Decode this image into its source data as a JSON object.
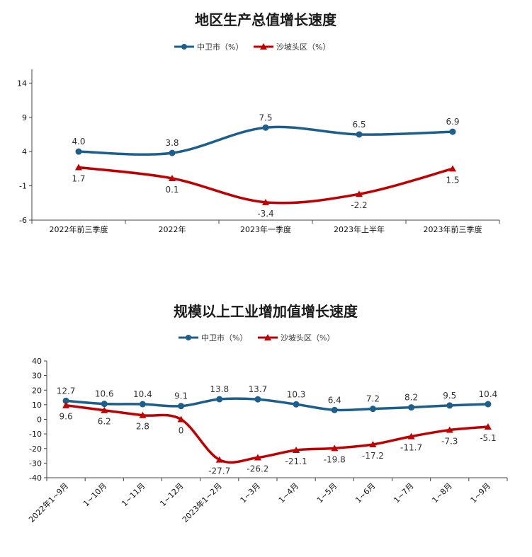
{
  "colors": {
    "blue": "#1c5f8c",
    "red": "#c00000"
  },
  "chart_data": [
    {
      "type": "line",
      "title": "地区生产总值增长速度",
      "categories": [
        "2022年前三季度",
        "2022年",
        "2023年一季度",
        "2023年上半年",
        "2023年前三季度"
      ],
      "series": [
        {
          "name": "中卫市（%）",
          "values": [
            4.0,
            3.8,
            7.5,
            6.5,
            6.9
          ],
          "labels": [
            "4.0",
            "3.8",
            "7.5",
            "6.5",
            "6.9"
          ],
          "marker": "circle"
        },
        {
          "name": "沙坡头区（%）",
          "values": [
            1.7,
            0.1,
            -3.4,
            -2.2,
            1.5
          ],
          "labels": [
            "1.7",
            "0.1",
            "-3.4",
            "-2.2",
            "1.5"
          ],
          "marker": "triangle"
        }
      ],
      "ylim": [
        -6,
        16
      ],
      "yticks": [
        "14",
        "9",
        "4",
        "-1",
        "-6"
      ],
      "ytick_values": [
        14,
        9,
        4,
        -1,
        -6
      ],
      "legend": "top",
      "grid": false
    },
    {
      "type": "line",
      "title": "规模以上工业增加值增长速度",
      "categories": [
        "2022年1~9月",
        "1~10月",
        "1~11月",
        "1~12月",
        "2023年1~2月",
        "1~3月",
        "1~4月",
        "1~5月",
        "1~6月",
        "1~7月",
        "1~8月",
        "1~9月"
      ],
      "series": [
        {
          "name": "中卫市（%）",
          "values": [
            12.7,
            10.6,
            10.4,
            9.1,
            13.8,
            13.7,
            10.3,
            6.4,
            7.2,
            8.2,
            9.5,
            10.4
          ],
          "labels": [
            "12.7",
            "10.6",
            "10.4",
            "9.1",
            "13.8",
            "13.7",
            "10.3",
            "6.4",
            "7.2",
            "8.2",
            "9.5",
            "10.4"
          ],
          "marker": "circle"
        },
        {
          "name": "沙坡头区（%）",
          "values": [
            9.6,
            6.2,
            2.8,
            0,
            -27.7,
            -26.2,
            -21.1,
            -19.8,
            -17.2,
            -11.7,
            -7.3,
            -5.1
          ],
          "labels": [
            "9.6",
            "6.2",
            "2.8",
            "0",
            "-27.7",
            "-26.2",
            "-21.1",
            "-19.8",
            "-17.2",
            "-11.7",
            "-7.3",
            "-5.1"
          ],
          "marker": "triangle"
        }
      ],
      "ylim": [
        -40,
        40
      ],
      "yticks": [
        "40",
        "30",
        "20",
        "10",
        "0",
        "-10",
        "-20",
        "-30",
        "-40"
      ],
      "ytick_values": [
        40,
        30,
        20,
        10,
        0,
        -10,
        -20,
        -30,
        -40
      ],
      "legend": "top",
      "grid": false
    }
  ]
}
